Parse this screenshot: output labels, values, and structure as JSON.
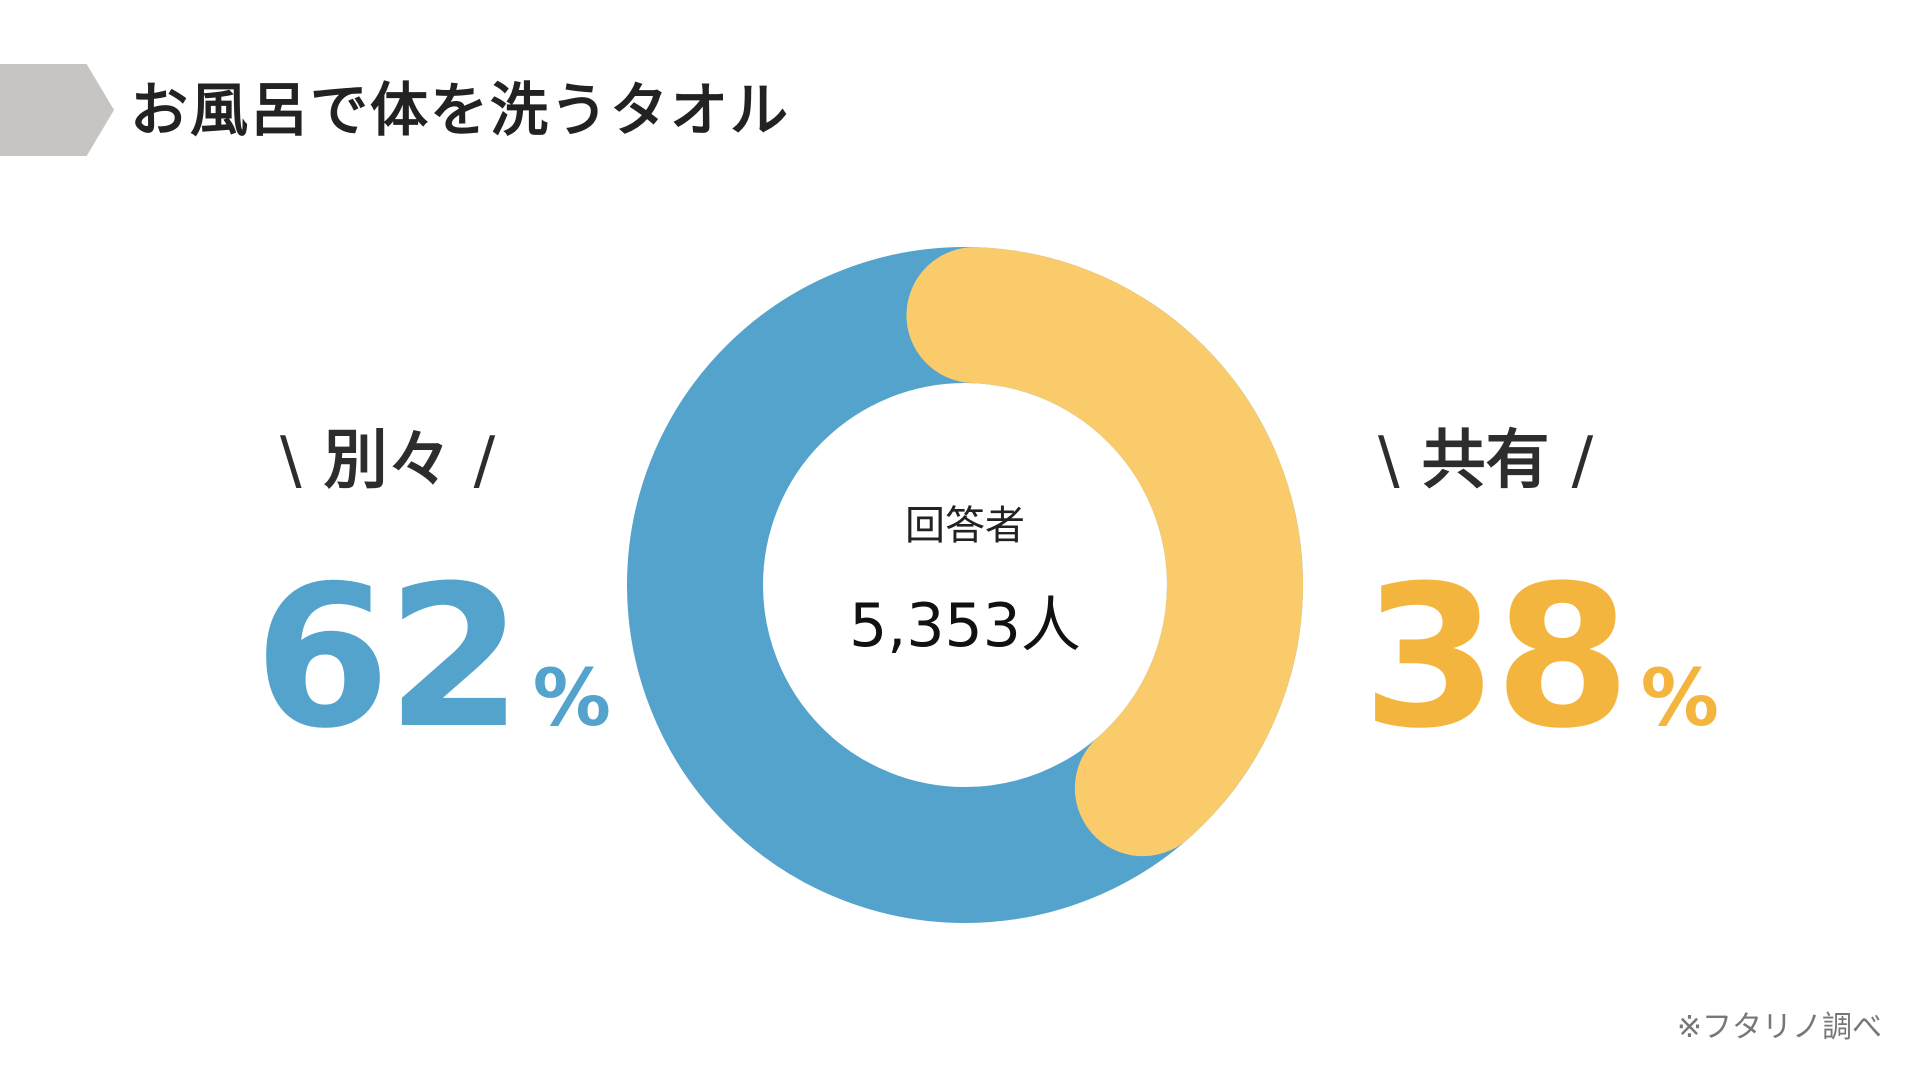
{
  "title": "お風呂で体を洗うタオル",
  "chart_data": {
    "type": "pie",
    "variant": "donut",
    "center_label": "回答者",
    "center_value": "5,353人",
    "categories": [
      "別々",
      "共有"
    ],
    "values": [
      62,
      38
    ],
    "value_labels": [
      "62",
      "38"
    ],
    "unit": "%",
    "colors": [
      "#53a3cc",
      "#f9cb6b"
    ],
    "label_colors": [
      "#53a3cc",
      "#f3b53d"
    ],
    "slash_left": "\\",
    "slash_right": "/"
  },
  "source": "※フタリノ調べ"
}
